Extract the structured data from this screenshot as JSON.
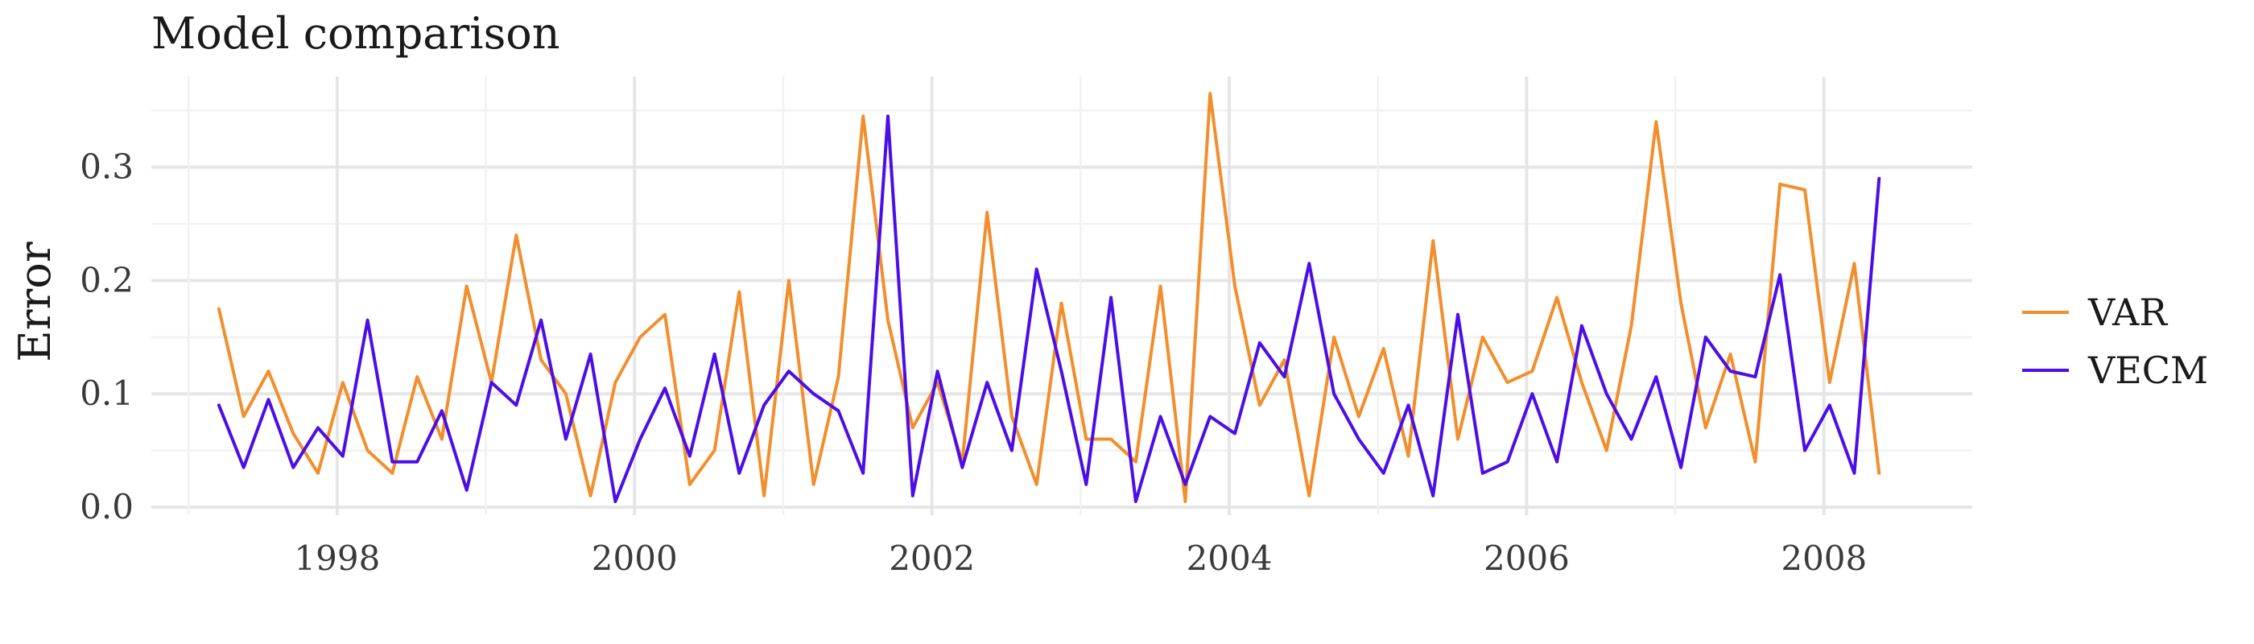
{
  "chart_data": {
    "type": "line",
    "title": "Model comparison",
    "xlabel": "",
    "ylabel": "Error",
    "grid": true,
    "legend_position": "right",
    "x_axis": {
      "type": "date",
      "range": [
        "1996-10-01",
        "2008-12-31"
      ],
      "ticks": [
        "1998",
        "2000",
        "2002",
        "2004",
        "2006",
        "2008"
      ]
    },
    "y_axis": {
      "range": [
        0,
        0.38
      ],
      "ticks": [
        "0.0",
        "0.1",
        "0.2",
        "0.3"
      ]
    },
    "x": [
      "1997-03",
      "1997-05",
      "1997-07",
      "1997-09",
      "1997-11",
      "1998-01",
      "1998-03",
      "1998-05",
      "1998-07",
      "1998-09",
      "1998-11",
      "1999-01",
      "1999-03",
      "1999-05",
      "1999-07",
      "1999-09",
      "1999-11",
      "2000-01",
      "2000-03",
      "2000-05",
      "2000-07",
      "2000-09",
      "2000-11",
      "2001-01",
      "2001-03",
      "2001-05",
      "2001-07",
      "2001-09",
      "2001-11",
      "2002-01",
      "2002-03",
      "2002-05",
      "2002-07",
      "2002-09",
      "2002-11",
      "2003-01",
      "2003-03",
      "2003-05",
      "2003-07",
      "2003-09",
      "2003-11",
      "2004-01",
      "2004-03",
      "2004-05",
      "2004-07",
      "2004-09",
      "2004-11",
      "2005-01",
      "2005-03",
      "2005-05",
      "2005-07",
      "2005-09",
      "2005-11",
      "2006-01",
      "2006-03",
      "2006-05",
      "2006-07",
      "2006-09",
      "2006-11",
      "2007-01",
      "2007-03",
      "2007-05",
      "2007-07",
      "2007-09",
      "2007-11",
      "2008-01",
      "2008-03",
      "2008-05"
    ],
    "series": [
      {
        "name": "VAR",
        "color": "#F28E2B",
        "values": [
          0.175,
          0.08,
          0.12,
          0.065,
          0.03,
          0.11,
          0.05,
          0.03,
          0.115,
          0.06,
          0.195,
          0.11,
          0.24,
          0.13,
          0.1,
          0.01,
          0.11,
          0.15,
          0.17,
          0.02,
          0.05,
          0.19,
          0.01,
          0.2,
          0.02,
          0.115,
          0.345,
          0.165,
          0.07,
          0.11,
          0.04,
          0.26,
          0.08,
          0.02,
          0.18,
          0.06,
          0.06,
          0.04,
          0.195,
          0.005,
          0.365,
          0.195,
          0.09,
          0.13,
          0.01,
          0.15,
          0.08,
          0.14,
          0.045,
          0.235,
          0.06,
          0.15,
          0.11,
          0.12,
          0.185,
          0.11,
          0.05,
          0.16,
          0.34,
          0.18,
          0.07,
          0.135,
          0.04,
          0.285,
          0.28,
          0.11,
          0.215,
          0.03
        ]
      },
      {
        "name": "VECM",
        "color": "#4B0EE8",
        "values": [
          0.09,
          0.035,
          0.095,
          0.035,
          0.07,
          0.045,
          0.165,
          0.04,
          0.04,
          0.085,
          0.015,
          0.11,
          0.09,
          0.165,
          0.06,
          0.135,
          0.005,
          0.06,
          0.105,
          0.045,
          0.135,
          0.03,
          0.09,
          0.12,
          0.1,
          0.085,
          0.03,
          0.345,
          0.01,
          0.12,
          0.035,
          0.11,
          0.05,
          0.21,
          0.12,
          0.02,
          0.185,
          0.005,
          0.08,
          0.02,
          0.08,
          0.065,
          0.145,
          0.115,
          0.215,
          0.1,
          0.06,
          0.03,
          0.09,
          0.01,
          0.17,
          0.03,
          0.04,
          0.1,
          0.04,
          0.16,
          0.1,
          0.06,
          0.115,
          0.035,
          0.15,
          0.12,
          0.115,
          0.205,
          0.05,
          0.09,
          0.03,
          0.29
        ]
      }
    ]
  }
}
